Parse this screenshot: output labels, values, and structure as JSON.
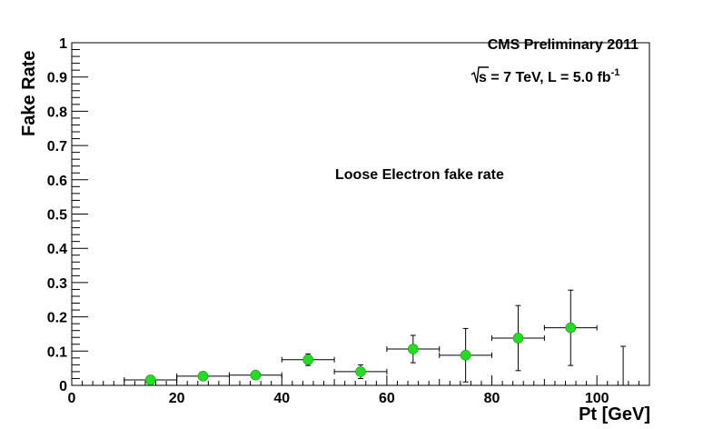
{
  "chart_data": {
    "type": "scatter",
    "xlabel": "Pt [GeV]",
    "ylabel": "Fake Rate",
    "xlim": [
      0,
      110
    ],
    "ylim": [
      0,
      1
    ],
    "x_ticks": [
      "0",
      "20",
      "40",
      "60",
      "80",
      "100"
    ],
    "y_ticks": [
      "0",
      "0.1",
      "0.2",
      "0.3",
      "0.4",
      "0.5",
      "0.6",
      "0.7",
      "0.8",
      "0.9",
      "1"
    ],
    "annotations": {
      "experiment": "CMS Preliminary 2011",
      "energy_prefix": "s = 7 TeV, L = 5.0 fb",
      "energy_superscript": "-1",
      "label": "Loose Electron fake rate"
    },
    "marker_color": "#22dd22",
    "grid": false,
    "points": [
      {
        "x": 15,
        "y": 0.016,
        "xerr": 5,
        "yerr": 0.005
      },
      {
        "x": 25,
        "y": 0.027,
        "xerr": 5,
        "yerr": 0.007
      },
      {
        "x": 35,
        "y": 0.03,
        "xerr": 5,
        "yerr": 0.008
      },
      {
        "x": 45,
        "y": 0.075,
        "xerr": 5,
        "yerr": 0.017
      },
      {
        "x": 55,
        "y": 0.04,
        "xerr": 5,
        "yerr": 0.02
      },
      {
        "x": 65,
        "y": 0.106,
        "xerr": 5,
        "yerr": 0.04
      },
      {
        "x": 75,
        "y": 0.088,
        "xerr": 5,
        "yerr": 0.078
      },
      {
        "x": 85,
        "y": 0.138,
        "xerr": 5,
        "yerr": 0.095
      },
      {
        "x": 95,
        "y": 0.168,
        "xerr": 5,
        "yerr": 0.11
      },
      {
        "x": 105,
        "y": 0.0,
        "xerr": 0,
        "yerr": 0.114
      }
    ]
  }
}
